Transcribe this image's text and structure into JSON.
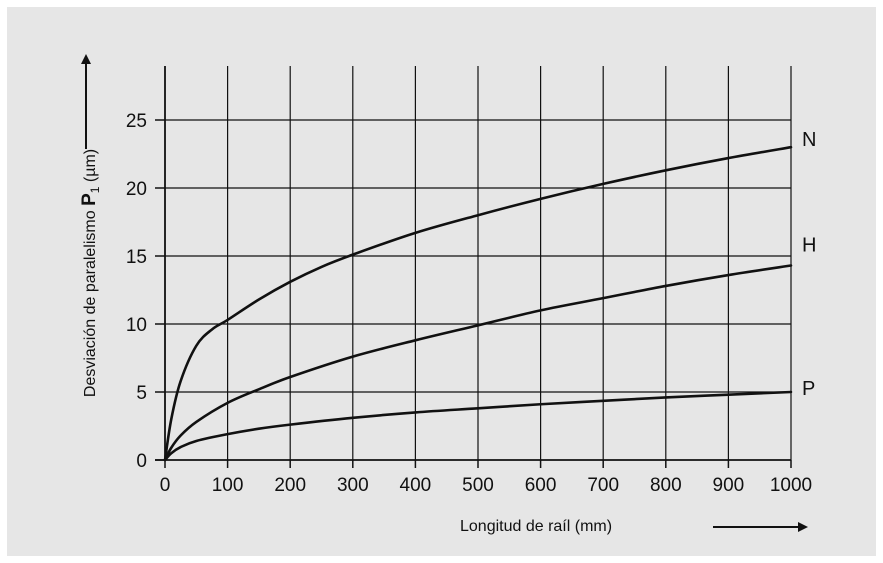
{
  "chart_data": {
    "type": "line",
    "title": "",
    "xlabel": "Longitud de raíl (mm)",
    "ylabel_prefix": "Desviación de paralelismo ",
    "ylabel_symbol": "P",
    "ylabel_subscript": "1",
    "ylabel_suffix": " (µm)",
    "xlim": [
      0,
      1000
    ],
    "ylim": [
      0,
      25
    ],
    "xticks": [
      "0",
      "100",
      "200",
      "300",
      "400",
      "500",
      "600",
      "700",
      "800",
      "900",
      "1000"
    ],
    "yticks": [
      "0",
      "5",
      "10",
      "15",
      "20",
      "25"
    ],
    "grid": true,
    "legend": "labels at right end of lines",
    "colors": {
      "background": "#e6e6e6",
      "lines": "#111111"
    },
    "series": [
      {
        "name": "N",
        "x": [
          0,
          10,
          25,
          50,
          75,
          100,
          150,
          200,
          250,
          300,
          400,
          500,
          600,
          700,
          800,
          900,
          1000
        ],
        "y": [
          0,
          3.0,
          5.8,
          8.4,
          9.6,
          10.3,
          11.8,
          13.1,
          14.2,
          15.1,
          16.7,
          18.0,
          19.2,
          20.3,
          21.3,
          22.2,
          23.0
        ]
      },
      {
        "name": "H",
        "x": [
          0,
          10,
          25,
          50,
          100,
          150,
          200,
          300,
          400,
          500,
          600,
          700,
          800,
          900,
          1000
        ],
        "y": [
          0,
          0.9,
          1.8,
          2.8,
          4.2,
          5.2,
          6.1,
          7.6,
          8.8,
          9.9,
          11.0,
          11.9,
          12.8,
          13.6,
          14.3
        ]
      },
      {
        "name": "P",
        "x": [
          0,
          10,
          25,
          50,
          100,
          150,
          200,
          300,
          400,
          500,
          600,
          700,
          800,
          900,
          1000
        ],
        "y": [
          0,
          0.5,
          0.95,
          1.4,
          1.9,
          2.3,
          2.6,
          3.1,
          3.5,
          3.8,
          4.1,
          4.35,
          4.6,
          4.8,
          5.0
        ]
      }
    ]
  }
}
